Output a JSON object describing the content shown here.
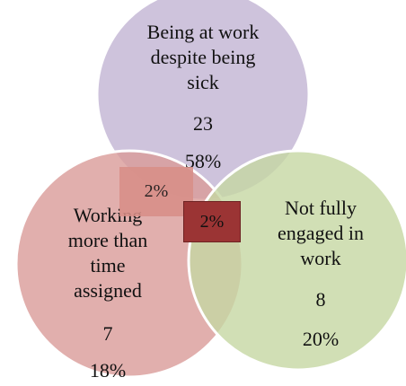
{
  "colors": {
    "top_circle": "#c5b9d6",
    "left_circle": "#d99b99",
    "right_circle": "#c6d7a3",
    "left_overlap_box": "#d98f88",
    "center_box": "#9b3434",
    "stroke": "#ffffff"
  },
  "sets": {
    "top": {
      "line1": "Being at work",
      "line2": "despite being",
      "line3": "sick",
      "count": "23",
      "percent": "58%"
    },
    "left": {
      "line1": "Working",
      "line2": "more  than",
      "line3": "time",
      "line4": "assigned",
      "count": "7",
      "percent": "18%"
    },
    "right": {
      "line1": "Not fully",
      "line2": "engaged in",
      "line3": "work",
      "count": "8",
      "percent": "20%"
    }
  },
  "overlaps": {
    "top_left": "2%",
    "center": "2%"
  }
}
